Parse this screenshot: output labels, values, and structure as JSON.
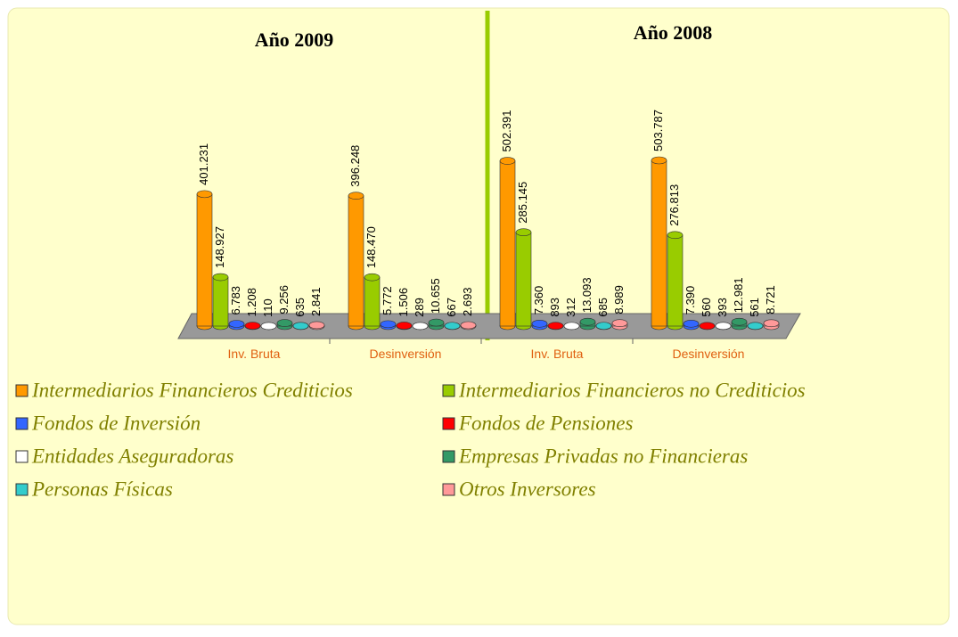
{
  "chart_data": {
    "type": "bar3d",
    "group_titles": [
      "Año 2009",
      "Año 2008"
    ],
    "categories": [
      "Inv. Bruta",
      "Desinversión",
      "Inv. Bruta",
      "Desinversión"
    ],
    "series": [
      {
        "name": "Intermediarios Financieros Crediticios",
        "color": "#ff9900",
        "values": [
          401231,
          396248,
          502391,
          503787
        ],
        "value_labels": [
          "401.231",
          "396.248",
          "502.391",
          "503.787"
        ]
      },
      {
        "name": "Intermediarios Financieros no Crediticios",
        "color": "#99cc00",
        "values": [
          148927,
          148470,
          285145,
          276813
        ],
        "value_labels": [
          "148.927",
          "148.470",
          "285.145",
          "276.813"
        ]
      },
      {
        "name": "Fondos de Inversión",
        "color": "#3366ff",
        "values": [
          6783,
          5772,
          7360,
          7390
        ],
        "value_labels": [
          "6.783",
          "5.772",
          "7.360",
          "7.390"
        ]
      },
      {
        "name": "Fondos de Pensiones",
        "color": "#ff0000",
        "values": [
          1208,
          1506,
          893,
          560
        ],
        "value_labels": [
          "1.208",
          "1.506",
          "893",
          "560"
        ]
      },
      {
        "name": "Entidades Aseguradoras",
        "color": "#ffffff",
        "values": [
          110,
          289,
          312,
          393
        ],
        "value_labels": [
          "110",
          "289",
          "312",
          "393"
        ]
      },
      {
        "name": "Empresas Privadas no Financieras",
        "color": "#339966",
        "values": [
          9256,
          10655,
          13093,
          12981
        ],
        "value_labels": [
          "9.256",
          "10.655",
          "13.093",
          "12.981"
        ]
      },
      {
        "name": "Personas Físicas",
        "color": "#33cccc",
        "values": [
          635,
          667,
          685,
          561
        ],
        "value_labels": [
          "635",
          "667",
          "685",
          "561"
        ]
      },
      {
        "name": "Otros Inversores",
        "color": "#ff9999",
        "values": [
          2841,
          2693,
          8989,
          8721
        ],
        "value_labels": [
          "2.841",
          "2.693",
          "8.989",
          "8.721"
        ]
      }
    ]
  }
}
